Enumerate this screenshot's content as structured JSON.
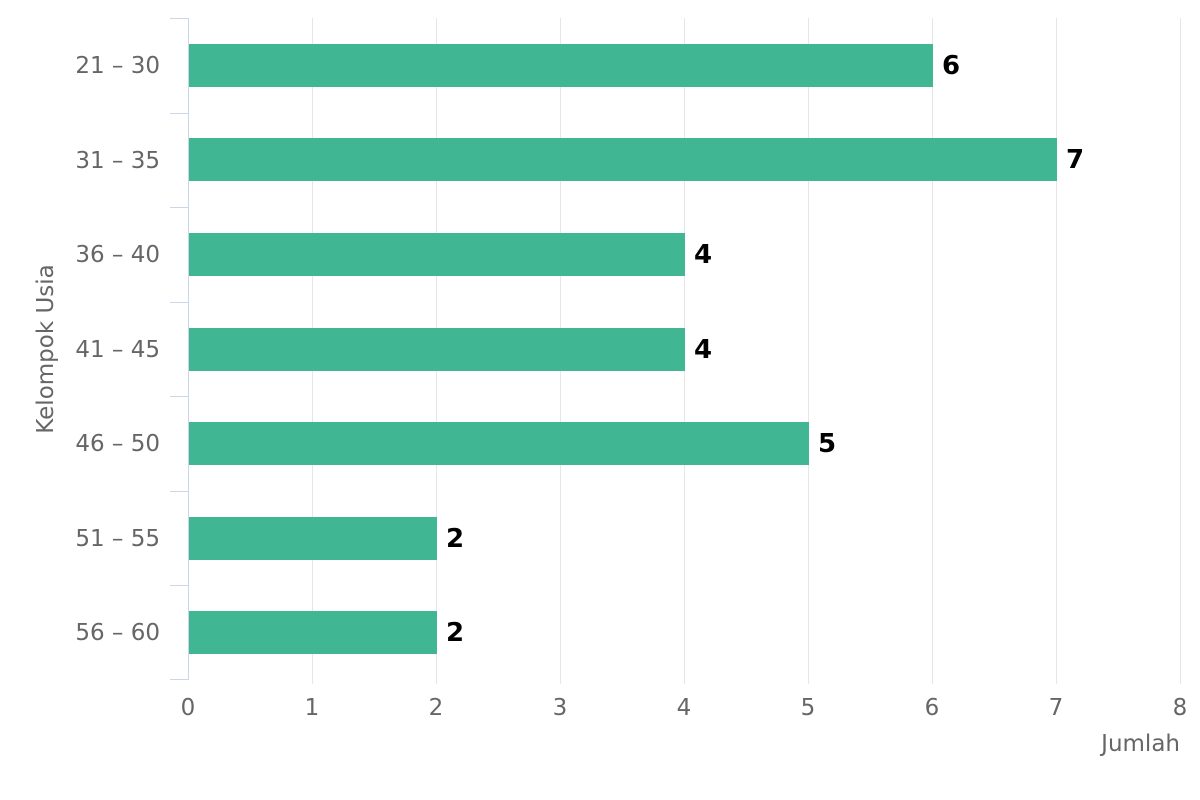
{
  "chart_data": {
    "type": "bar",
    "orientation": "horizontal",
    "title": "",
    "categories": [
      "21 – 30",
      "31 – 35",
      "36 – 40",
      "41 – 45",
      "46 – 50",
      "51 – 55",
      "56 – 60"
    ],
    "values": [
      6,
      7,
      4,
      4,
      5,
      2,
      2
    ],
    "data_labels": [
      "6",
      "7",
      "4",
      "4",
      "5",
      "2",
      "2"
    ],
    "xlabel": "Jumlah",
    "ylabel": "Kelompok Usia",
    "xlim": [
      0,
      8
    ],
    "x_ticks": [
      "0",
      "1",
      "2",
      "3",
      "4",
      "5",
      "6",
      "7",
      "8"
    ],
    "grid": true,
    "legend": false,
    "show_data_labels": true,
    "colors": {
      "bar": "#40b792",
      "axis_line": "#ccd6eb",
      "gridline": "#e6e6e6",
      "tick_text": "#666666",
      "category_text": "#666666",
      "axis_title_text": "#666666",
      "data_label_text": "#000000",
      "background": "#ffffff"
    }
  }
}
